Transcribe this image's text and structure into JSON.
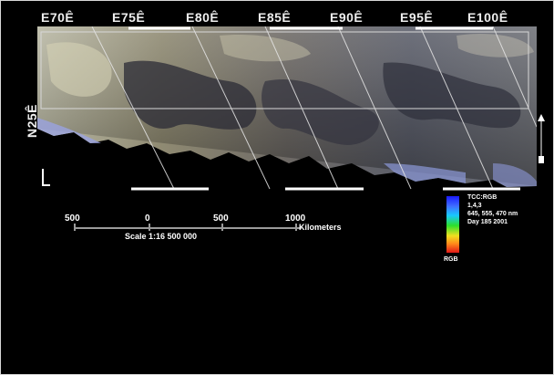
{
  "map": {
    "longitude_labels": [
      "E70Ê",
      "E75Ê",
      "E80Ê",
      "E85Ê",
      "E90Ê",
      "E95Ê",
      "E100Ê"
    ],
    "latitude_label": "N25Ê"
  },
  "scale": {
    "ticks": [
      "500",
      "0",
      "500",
      "1000"
    ],
    "unit": "Kilometers",
    "ratio": "Scale 1:16 500 000"
  },
  "legend": {
    "lines": [
      "TCC:RGB",
      "1,4,3",
      "645, 555, 470 nm",
      "Day 185  2001"
    ],
    "strip_label": "RGB"
  },
  "colors": {
    "background": "#000000",
    "frame": "#ffffff",
    "graticule": "#d0d0d0",
    "terrain_light": "#c8c2a8",
    "terrain_dark": "#2a2a33",
    "coast": "#9aa0d8"
  }
}
